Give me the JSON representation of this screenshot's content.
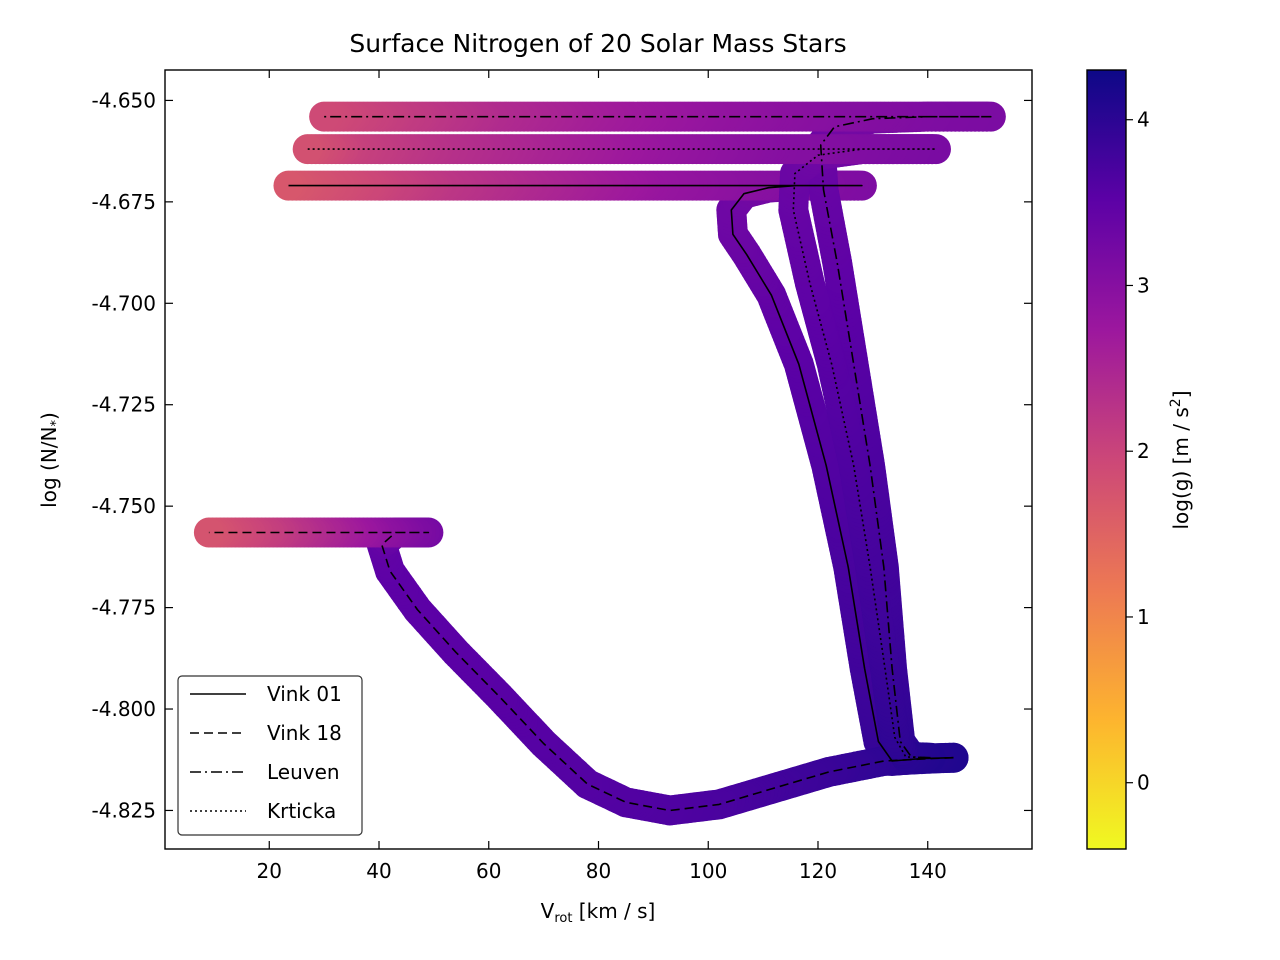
{
  "chart_data": {
    "type": "line",
    "title": "Surface Nitrogen of 20 Solar Mass Stars",
    "xlabel": "V",
    "xlabel_sub": "rot",
    "xlabel_units": " [km / s]",
    "ylabel": "log (N/N",
    "ylabel_sub": "*",
    "ylabel_tail": ")",
    "xlim": [
      1,
      159
    ],
    "ylim": [
      -4.8345,
      -4.6425
    ],
    "xticks": [
      20,
      40,
      60,
      80,
      100,
      120,
      140
    ],
    "xtick_labels": [
      "20",
      "40",
      "60",
      "80",
      "100",
      "120",
      "140"
    ],
    "yticks": [
      -4.65,
      -4.675,
      -4.7,
      -4.725,
      -4.75,
      -4.775,
      -4.8,
      -4.825
    ],
    "ytick_labels": [
      "-4.650",
      "-4.675",
      "-4.700",
      "-4.725",
      "-4.750",
      "-4.775",
      "-4.800",
      "-4.825"
    ],
    "colorbar": {
      "label": "log(g) [m / s",
      "label_sup": "2",
      "label_tail": "]",
      "colormap": "plasma",
      "range": [
        -0.4,
        4.3
      ],
      "ticks": [
        0,
        1,
        2,
        3,
        4
      ],
      "tick_labels": [
        "0",
        "1",
        "2",
        "3",
        "4"
      ],
      "stops": [
        "#f0f921",
        "#fdb42f",
        "#ed7953",
        "#cc4778",
        "#9c179e",
        "#5c01a6",
        "#0d0887"
      ]
    },
    "legend": {
      "position": "lower-left",
      "entries": [
        {
          "name": "Vink 01",
          "dash": "solid"
        },
        {
          "name": "Vink 18",
          "dash": "dashed"
        },
        {
          "name": "Leuven",
          "dash": "dashdot"
        },
        {
          "name": "Krticka",
          "dash": "dotted"
        }
      ]
    },
    "series": [
      {
        "name": "Vink 01",
        "dash": "solid",
        "points": [
          [
            144.7,
            -4.812
          ],
          [
            139,
            -4.8122
          ],
          [
            133.5,
            -4.8128
          ],
          [
            131,
            -4.808
          ],
          [
            128.5,
            -4.79
          ],
          [
            125.5,
            -4.765
          ],
          [
            121.5,
            -4.74
          ],
          [
            116.5,
            -4.715
          ],
          [
            111.5,
            -4.698
          ],
          [
            107,
            -4.688
          ],
          [
            104.5,
            -4.683
          ],
          [
            104.2,
            -4.677
          ],
          [
            106.5,
            -4.673
          ],
          [
            111,
            -4.6715
          ],
          [
            116,
            -4.671
          ],
          [
            122,
            -4.671
          ],
          [
            128,
            -4.671
          ],
          [
            110,
            -4.671
          ],
          [
            90,
            -4.671
          ],
          [
            70,
            -4.671
          ],
          [
            50,
            -4.671
          ],
          [
            35,
            -4.671
          ],
          [
            23.5,
            -4.671
          ]
        ],
        "logg": [
          4.12,
          4.05,
          3.97,
          3.9,
          3.8,
          3.72,
          3.62,
          3.54,
          3.45,
          3.37,
          3.33,
          3.3,
          3.28,
          3.24,
          3.2,
          3.15,
          3.1,
          3.0,
          2.8,
          2.5,
          2.2,
          1.9,
          1.7
        ]
      },
      {
        "name": "Vink 18",
        "dash": "dashed",
        "points": [
          [
            144.7,
            -4.812
          ],
          [
            141,
            -4.8122
          ],
          [
            132,
            -4.8128
          ],
          [
            122,
            -4.8155
          ],
          [
            112,
            -4.8195
          ],
          [
            102,
            -4.8235
          ],
          [
            93,
            -4.825
          ],
          [
            85,
            -4.823
          ],
          [
            78,
            -4.8185
          ],
          [
            70,
            -4.8085
          ],
          [
            62,
            -4.797
          ],
          [
            54,
            -4.786
          ],
          [
            47,
            -4.7755
          ],
          [
            42,
            -4.766
          ],
          [
            40.5,
            -4.7595
          ],
          [
            43,
            -4.7565
          ],
          [
            49,
            -4.7565
          ],
          [
            40,
            -4.7565
          ],
          [
            30,
            -4.7565
          ],
          [
            20,
            -4.7565
          ],
          [
            9,
            -4.7565
          ]
        ],
        "logg": [
          4.12,
          4.08,
          3.98,
          3.87,
          3.78,
          3.7,
          3.65,
          3.62,
          3.6,
          3.58,
          3.56,
          3.54,
          3.52,
          3.5,
          3.45,
          3.35,
          3.2,
          2.9,
          2.5,
          2.1,
          1.75
        ]
      },
      {
        "name": "Leuven",
        "dash": "dashdot",
        "points": [
          [
            140.5,
            -4.812
          ],
          [
            137,
            -4.8118
          ],
          [
            135,
            -4.808
          ],
          [
            133.5,
            -4.79
          ],
          [
            132,
            -4.765
          ],
          [
            129.5,
            -4.74
          ],
          [
            126.5,
            -4.715
          ],
          [
            123.5,
            -4.69
          ],
          [
            121,
            -4.672
          ],
          [
            120.5,
            -4.661
          ],
          [
            123,
            -4.6565
          ],
          [
            130,
            -4.6545
          ],
          [
            140,
            -4.654
          ],
          [
            151.5,
            -4.654
          ],
          [
            140,
            -4.654
          ],
          [
            120,
            -4.654
          ],
          [
            100,
            -4.654
          ],
          [
            80,
            -4.654
          ],
          [
            60,
            -4.654
          ],
          [
            45,
            -4.654
          ],
          [
            30,
            -4.654
          ]
        ],
        "logg": [
          4.1,
          4.05,
          3.98,
          3.88,
          3.78,
          3.68,
          3.58,
          3.48,
          3.4,
          3.33,
          3.27,
          3.22,
          3.18,
          3.14,
          3.1,
          3.0,
          2.85,
          2.65,
          2.4,
          2.15,
          1.9
        ]
      },
      {
        "name": "Krticka",
        "dash": "dotted",
        "points": [
          [
            139.5,
            -4.812
          ],
          [
            136,
            -4.8118
          ],
          [
            134,
            -4.807
          ],
          [
            132,
            -4.788
          ],
          [
            129.5,
            -4.765
          ],
          [
            126.5,
            -4.74
          ],
          [
            122.5,
            -4.715
          ],
          [
            118.5,
            -4.695
          ],
          [
            115.5,
            -4.677
          ],
          [
            115.8,
            -4.668
          ],
          [
            120,
            -4.6635
          ],
          [
            128,
            -4.662
          ],
          [
            136,
            -4.662
          ],
          [
            141.5,
            -4.662
          ],
          [
            130,
            -4.662
          ],
          [
            110,
            -4.662
          ],
          [
            90,
            -4.662
          ],
          [
            70,
            -4.662
          ],
          [
            50,
            -4.662
          ],
          [
            35,
            -4.662
          ],
          [
            27,
            -4.662
          ]
        ],
        "logg": [
          4.08,
          4.03,
          3.96,
          3.86,
          3.76,
          3.66,
          3.56,
          3.48,
          3.4,
          3.35,
          3.3,
          3.25,
          3.2,
          3.16,
          3.1,
          3.0,
          2.8,
          2.55,
          2.3,
          2.05,
          1.8
        ]
      }
    ]
  }
}
